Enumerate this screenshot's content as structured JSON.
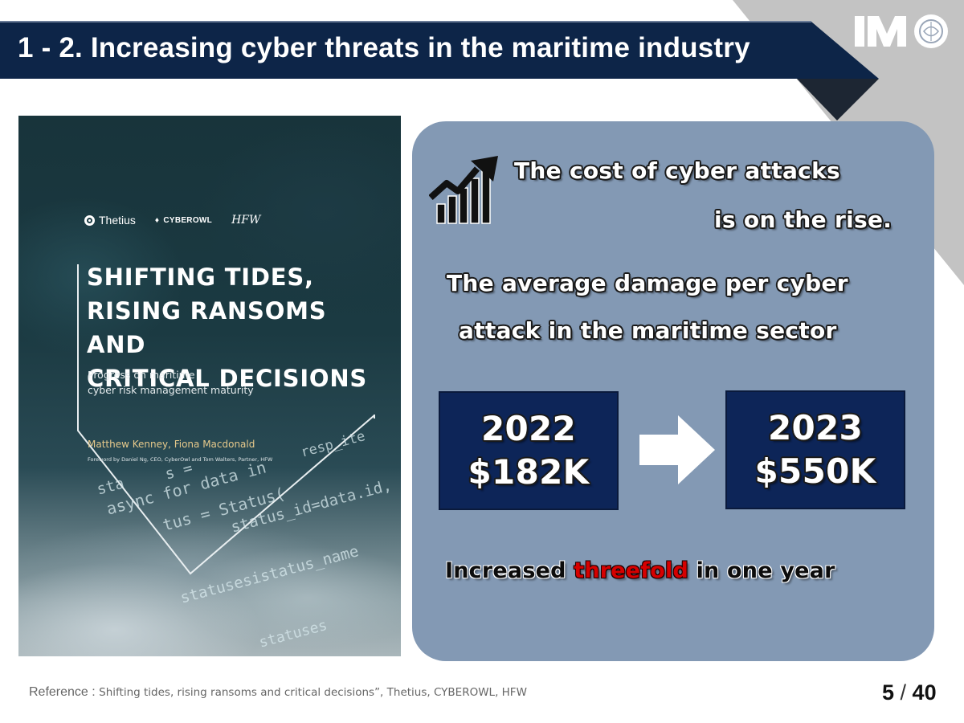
{
  "slide": {
    "title": "1 - 2. Increasing cyber threats in the maritime industry",
    "logo": "IMO",
    "colors": {
      "title_bar": "#0d2548",
      "panel": "#8399b4",
      "stat_box": "#0d2558",
      "highlight": "#d60000"
    }
  },
  "cover": {
    "brands": [
      "Thetius",
      "CYBEROWL",
      "HFW"
    ],
    "title_lines": [
      "SHIFTING TIDES,",
      "RISING RANSOMS AND",
      "CRITICAL DECISIONS"
    ],
    "subtitle_lines": [
      "Progress on maritime",
      "cyber risk management maturity"
    ],
    "authors": "Matthew Kenney, Fiona Macdonald",
    "foreword": "Foreword by Daniel Ng, CEO, CyberOwl and Tom Walters, Partner, HFW",
    "code_fragments": [
      "s =",
      "resp_ite",
      "async for data in",
      "sta",
      "tus = Status(",
      "status_id=data.id,",
      "statusesistatus_name",
      "statuses"
    ]
  },
  "panel": {
    "icon": "rising-bar-chart-icon",
    "headline_line1": "The cost of cyber attacks",
    "headline_line2": "is on the rise.",
    "subhead_line1": "The average damage per cyber",
    "subhead_line2": "attack in the maritime sector",
    "stat_from": {
      "year": "2022",
      "value": "$182K"
    },
    "arrow_icon": "right-arrow-icon",
    "stat_to": {
      "year": "2023",
      "value": "$550K"
    },
    "summary_before": "Increased ",
    "summary_highlight": "threefold",
    "summary_after": " in one year"
  },
  "footer": {
    "reference_label": "Reference : ",
    "reference_text": "Shifting tides, rising ransoms and critical decisions”, Thetius, CYBEROWL, HFW",
    "page_current": "5",
    "page_separator": " / ",
    "page_total": "40"
  }
}
